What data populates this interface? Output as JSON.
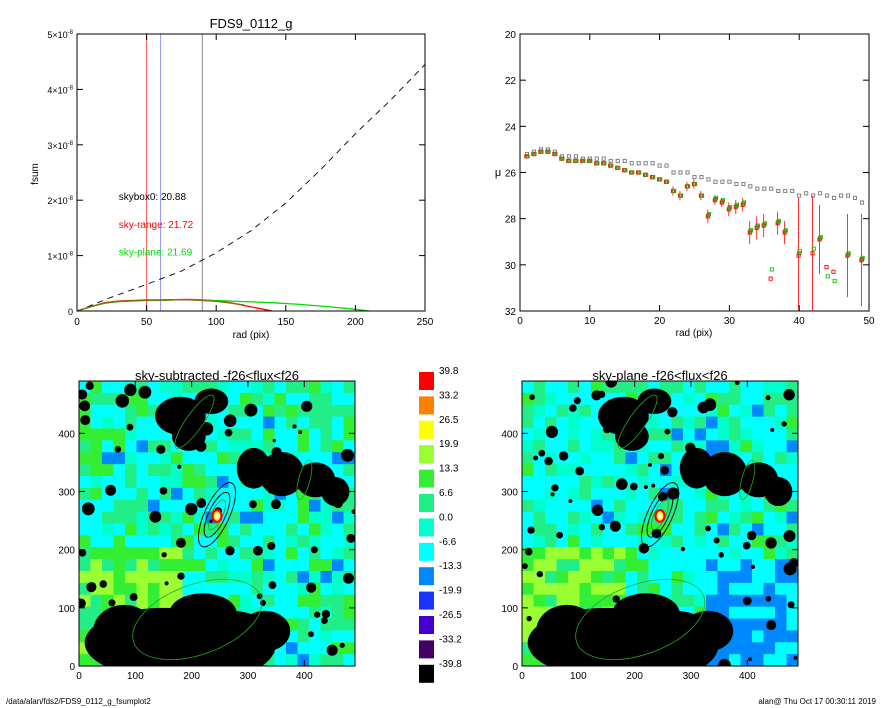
{
  "footer": {
    "path": "/data/alan/fds2/FDS9_0112_g_fsumplot2",
    "stamp": "alan@  Thu Oct 17 00:30:11 2019"
  },
  "chart_data": [
    {
      "type": "line",
      "title": "FDS9_0112_g",
      "xlabel": "rad (pix)",
      "ylabel": "fsum",
      "xlim": [
        0,
        250
      ],
      "ylim": [
        0,
        5e-08
      ],
      "x_ticks": [
        "0",
        "50",
        "100",
        "150",
        "200",
        "250"
      ],
      "y_ticks": [
        {
          "v": 0,
          "base": "0",
          "exp": ""
        },
        {
          "v": 1e-08,
          "base": "1×10",
          "exp": "-8"
        },
        {
          "v": 2e-08,
          "base": "2×10",
          "exp": "-8"
        },
        {
          "v": 3e-08,
          "base": "3×10",
          "exp": "-8"
        },
        {
          "v": 4e-08,
          "base": "4×10",
          "exp": "-8"
        },
        {
          "v": 5e-08,
          "base": "5×10",
          "exp": "-8"
        }
      ],
      "annotations": [
        {
          "text": "skybox0: 20.88",
          "color": "#000000",
          "x": 30,
          "y": 2e-08
        },
        {
          "text": "sky-range: 21.72",
          "color": "#ff0000",
          "x": 30,
          "y": 1.5e-08
        },
        {
          "text": "sky-plane: 21.69",
          "color": "#00dd00",
          "x": 30,
          "y": 1e-08
        }
      ],
      "vlines": [
        {
          "x": 50,
          "color": "#ff5555"
        },
        {
          "x": 60,
          "color": "#9999ff"
        },
        {
          "x": 90,
          "color": "#888888"
        }
      ],
      "series": [
        {
          "color": "#000000",
          "dash": "6,5",
          "x": [
            0,
            25,
            50,
            75,
            100,
            125,
            150,
            175,
            200,
            225,
            250
          ],
          "y": [
            0,
            2.5e-09,
            4.8e-09,
            7.2e-09,
            1.05e-08,
            1.45e-08,
            1.95e-08,
            2.55e-08,
            3.2e-08,
            3.8e-08,
            4.45e-08
          ]
        },
        {
          "color": "#ff0000",
          "dash": "",
          "x": [
            0,
            10,
            20,
            30,
            40,
            50,
            60,
            70,
            80,
            90,
            100,
            110,
            120,
            130,
            140
          ],
          "y": [
            0,
            8e-10,
            1.5e-09,
            1.8e-09,
            1.9e-09,
            2e-09,
            2e-09,
            2.05e-09,
            2.1e-09,
            2e-09,
            1.8e-09,
            1.5e-09,
            1e-09,
            5e-10,
            0
          ]
        },
        {
          "color": "#00dd00",
          "dash": "",
          "x": [
            0,
            10,
            20,
            30,
            40,
            50,
            60,
            70,
            80,
            90,
            100,
            120,
            140,
            160,
            180,
            200,
            210
          ],
          "y": [
            0,
            8e-10,
            1.4e-09,
            1.7e-09,
            1.8e-09,
            1.9e-09,
            1.9e-09,
            2e-09,
            2e-09,
            2e-09,
            1.9e-09,
            1.7e-09,
            1.5e-09,
            1.2e-09,
            8e-10,
            3e-10,
            0
          ]
        },
        {
          "color": "#8B6914",
          "dash": "",
          "x": [
            0,
            10,
            20,
            30,
            40,
            50,
            60,
            70,
            80,
            90,
            100,
            110,
            120
          ],
          "y": [
            0,
            8e-10,
            1.45e-09,
            1.75e-09,
            1.85e-09,
            1.95e-09,
            1.95e-09,
            2e-09,
            2e-09,
            1.9e-09,
            1.75e-09,
            1.45e-09,
            1.1e-09
          ]
        }
      ]
    },
    {
      "type": "scatter",
      "title": "",
      "xlabel": "rad (pix)",
      "ylabel": "μ",
      "xlim": [
        0,
        50
      ],
      "ylim": [
        32,
        20
      ],
      "x_ticks": [
        "0",
        "10",
        "20",
        "30",
        "40",
        "50"
      ],
      "y_ticks": [
        "20",
        "22",
        "24",
        "26",
        "28",
        "30",
        "32"
      ],
      "series": [
        {
          "color": "#777777",
          "marker": "square",
          "x": [
            1,
            2,
            3,
            4,
            5,
            6,
            7,
            8,
            9,
            10,
            11,
            12,
            13,
            14,
            15,
            16,
            17,
            18,
            19,
            20,
            21,
            22,
            23,
            24,
            25,
            26,
            27,
            28,
            29,
            30,
            31,
            32,
            33,
            34,
            35,
            36,
            37,
            38,
            39,
            40,
            41,
            42,
            43,
            44,
            45,
            46,
            47,
            48,
            49
          ],
          "y": [
            25.2,
            25.1,
            25.0,
            25.0,
            25.1,
            25.3,
            25.3,
            25.3,
            25.4,
            25.4,
            25.4,
            25.4,
            25.5,
            25.5,
            25.5,
            25.6,
            25.6,
            25.6,
            25.6,
            25.7,
            25.7,
            26.0,
            26.0,
            26.0,
            26.2,
            26.2,
            26.3,
            26.4,
            26.4,
            26.4,
            26.5,
            26.5,
            26.6,
            26.7,
            26.7,
            26.7,
            26.8,
            26.8,
            26.8,
            27.0,
            26.9,
            27.0,
            26.9,
            27.0,
            27.1,
            27.0,
            27.0,
            27.1,
            27.3
          ]
        },
        {
          "color": "#ff0000",
          "marker": "square",
          "x": [
            1,
            2,
            3,
            4,
            5,
            6,
            7,
            8,
            9,
            10,
            11,
            12,
            13,
            14,
            15,
            16,
            17,
            18,
            19,
            20,
            21,
            22,
            23,
            24,
            25,
            26,
            27,
            28,
            29,
            30,
            31,
            32,
            33,
            34,
            35,
            36,
            37,
            38,
            40,
            42,
            43,
            44,
            45,
            47,
            49
          ],
          "y": [
            25.3,
            25.2,
            25.1,
            25.1,
            25.2,
            25.4,
            25.5,
            25.5,
            25.5,
            25.5,
            25.6,
            25.6,
            25.7,
            25.8,
            25.9,
            26.0,
            26.0,
            26.1,
            26.2,
            26.3,
            26.4,
            26.8,
            27.0,
            26.6,
            26.5,
            27.0,
            27.9,
            27.2,
            27.3,
            27.6,
            27.5,
            27.4,
            28.6,
            28.4,
            28.3,
            30.6,
            28.2,
            28.6,
            29.6,
            29.5,
            28.9,
            30.1,
            30.3,
            29.6,
            29.8
          ],
          "yerr": [
            0.1,
            0.1,
            0.1,
            0.1,
            0.1,
            0.1,
            0.1,
            0.1,
            0.1,
            0.1,
            0.1,
            0.1,
            0.1,
            0.1,
            0.1,
            0.1,
            0.1,
            0.1,
            0.1,
            0.1,
            0.1,
            0.2,
            0.2,
            0.2,
            0.2,
            0.2,
            0.3,
            0.2,
            0.2,
            0.3,
            0.3,
            0.3,
            0.5,
            0.5,
            0.5,
            0,
            0.5,
            0.5,
            2.5,
            2.5,
            1.5,
            0,
            0,
            1.8,
            2.0
          ]
        },
        {
          "color": "#00cc00",
          "marker": "square",
          "x": [
            1,
            2,
            3,
            4,
            5,
            6,
            7,
            8,
            9,
            10,
            11,
            12,
            13,
            14,
            15,
            16,
            17,
            18,
            19,
            20,
            21,
            22,
            23,
            24,
            25,
            26,
            27,
            28,
            29,
            30,
            31,
            32,
            33,
            34,
            35,
            36,
            37,
            38,
            40,
            42,
            43,
            44,
            45,
            47,
            49
          ],
          "y": [
            25.3,
            25.2,
            25.1,
            25.1,
            25.2,
            25.4,
            25.5,
            25.5,
            25.5,
            25.5,
            25.6,
            25.6,
            25.7,
            25.8,
            25.9,
            26.0,
            26.0,
            26.1,
            26.2,
            26.3,
            26.4,
            26.8,
            27.0,
            26.6,
            26.5,
            27.0,
            27.8,
            27.1,
            27.2,
            27.5,
            27.4,
            27.3,
            28.5,
            28.3,
            28.2,
            30.2,
            28.1,
            28.5,
            29.4,
            29.3,
            28.8,
            30.5,
            30.7,
            29.5,
            29.7
          ]
        },
        {
          "color": "#8B6914",
          "marker": "square",
          "x": [
            1,
            2,
            3,
            4,
            5,
            6,
            7,
            8,
            9,
            10,
            11,
            12,
            13,
            14,
            15,
            16,
            17,
            18,
            19,
            20,
            21,
            22,
            23,
            24,
            25,
            26,
            27,
            28,
            29,
            30,
            31,
            32,
            33,
            34,
            35,
            37,
            38,
            40,
            43,
            47,
            49
          ],
          "y": [
            25.3,
            25.2,
            25.1,
            25.1,
            25.2,
            25.4,
            25.5,
            25.5,
            25.5,
            25.5,
            25.6,
            25.6,
            25.7,
            25.8,
            25.9,
            26.0,
            26.0,
            26.1,
            26.2,
            26.3,
            26.4,
            26.8,
            27.0,
            26.6,
            26.5,
            27.0,
            27.85,
            27.15,
            27.25,
            27.55,
            27.45,
            27.35,
            28.55,
            28.35,
            28.25,
            28.15,
            28.55,
            29.5,
            28.85,
            29.55,
            29.75
          ]
        }
      ]
    },
    {
      "type": "heatmap",
      "title": "sky-subtracted -f26<flux<f26",
      "xlim": [
        0,
        490
      ],
      "ylim": [
        0,
        490
      ],
      "x_ticks": [
        "0",
        "100",
        "200",
        "300",
        "400"
      ],
      "y_ticks": [
        "0",
        "100",
        "200",
        "300",
        "400"
      ]
    },
    {
      "type": "heatmap",
      "title": "sky-plane -f26<flux<f26",
      "xlim": [
        0,
        490
      ],
      "ylim": [
        0,
        490
      ],
      "x_ticks": [
        "0",
        "100",
        "200",
        "300",
        "400"
      ],
      "y_ticks": [
        "0",
        "100",
        "200",
        "300",
        "400"
      ]
    }
  ],
  "colorbar": {
    "labels": [
      "39.8",
      "33.2",
      "26.5",
      "19.9",
      "13.3",
      "6.6",
      "0.0",
      "-6.6",
      "-13.3",
      "-19.9",
      "-26.5",
      "-33.2",
      "-39.8"
    ],
    "colors": [
      "#ff0000",
      "#ff8000",
      "#ffff00",
      "#99ff33",
      "#33ee33",
      "#22ee88",
      "#00ffcc",
      "#00ffff",
      "#0088ff",
      "#1a33ff",
      "#4400cc",
      "#440066",
      "#000000"
    ]
  }
}
